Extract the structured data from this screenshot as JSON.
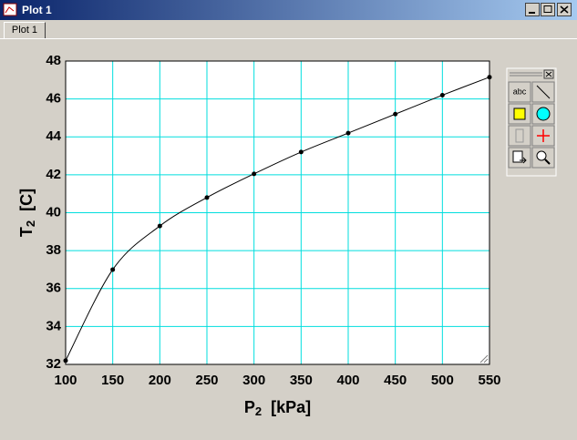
{
  "window": {
    "title": "Plot 1",
    "tab": "Plot 1",
    "text_tool": "abc"
  },
  "chart_data": {
    "type": "line",
    "x_label": {
      "text": "P",
      "subscript": "2",
      "unit": "[kPa]"
    },
    "y_label": {
      "text": "T",
      "subscript": "2",
      "unit": "[C]"
    },
    "x": [
      100,
      150,
      200,
      250,
      300,
      350,
      400,
      450,
      500,
      550
    ],
    "series": [
      {
        "color": "#000000",
        "values": [
          32.2,
          37.0,
          39.3,
          40.8,
          42.05,
          43.2,
          44.2,
          45.2,
          46.2,
          47.15
        ]
      }
    ],
    "xlim": [
      100,
      550
    ],
    "xticks": [
      100,
      150,
      200,
      250,
      300,
      350,
      400,
      450,
      500,
      550
    ],
    "ylim": [
      32,
      48
    ],
    "yticks": [
      32,
      34,
      36,
      38,
      40,
      42,
      44,
      46,
      48
    ],
    "grid": true,
    "grid_color": "#00dede"
  }
}
